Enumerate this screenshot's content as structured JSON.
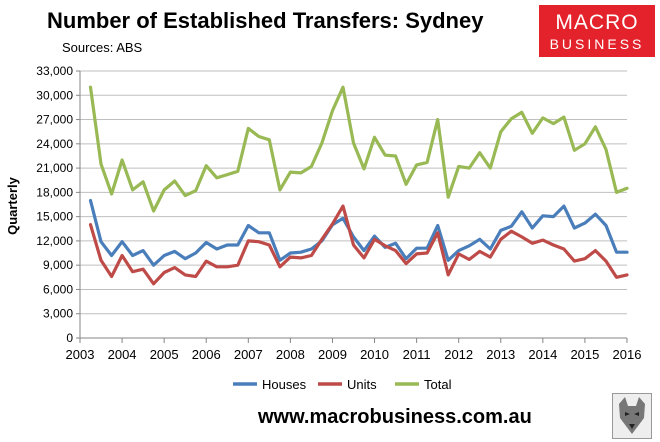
{
  "header": {
    "title": "Number of Established Transfers: Sydney",
    "subtitle": "Sources: ABS"
  },
  "logo": {
    "line1": "MACRO",
    "line2": "BUSINESS",
    "color": "#e4222b"
  },
  "footer": {
    "url": "www.macrobusiness.com.au"
  },
  "chart_data": {
    "type": "line",
    "title": "Number of Established Transfers: Sydney",
    "ylabel": "Quarterly",
    "xlabel": "",
    "ylim": [
      0,
      33000
    ],
    "xlim": [
      2003,
      2016
    ],
    "yticks": [
      0,
      3000,
      6000,
      9000,
      12000,
      15000,
      18000,
      21000,
      24000,
      27000,
      30000,
      33000
    ],
    "ytick_labels": [
      "0",
      "3,000",
      "6,000",
      "9,000",
      "12,000",
      "15,000",
      "18,000",
      "21,000",
      "24,000",
      "27,000",
      "30,000",
      "33,000"
    ],
    "xtick_labels": [
      "2003",
      "2004",
      "2005",
      "2006",
      "2007",
      "2008",
      "2009",
      "2010",
      "2011",
      "2012",
      "2013",
      "2014",
      "2015",
      "2016"
    ],
    "grid": "horizontal",
    "legend_position": "bottom",
    "x_start": 2003.25,
    "x_step": 0.25,
    "series": [
      {
        "name": "Houses",
        "color": "#4a7ebb",
        "values": [
          17000,
          11900,
          10200,
          11900,
          10200,
          10800,
          9000,
          10200,
          10700,
          9800,
          10500,
          11800,
          11000,
          11500,
          11500,
          13900,
          13000,
          13000,
          9600,
          10500,
          10600,
          11000,
          12000,
          14000,
          14800,
          12500,
          10800,
          12600,
          11200,
          11700,
          9800,
          11100,
          11100,
          13900,
          9600,
          10800,
          11400,
          12200,
          11000,
          13300,
          13800,
          15600,
          13600,
          15100,
          15000,
          16300,
          13600,
          14200,
          15300,
          13900,
          10600,
          10600
        ]
      },
      {
        "name": "Units",
        "color": "#be4b48",
        "values": [
          14000,
          9600,
          7600,
          10200,
          8200,
          8500,
          6700,
          8100,
          8700,
          7800,
          7600,
          9500,
          8800,
          8800,
          9000,
          12000,
          11900,
          11500,
          8800,
          10000,
          9900,
          10200,
          12200,
          14100,
          16300,
          11500,
          9900,
          12200,
          11400,
          10800,
          9200,
          10400,
          10500,
          13000,
          7800,
          10400,
          9700,
          10700,
          10000,
          12200,
          13200,
          12500,
          11700,
          12100,
          11500,
          11000,
          9500,
          9800,
          10800,
          9500,
          7500,
          7800
        ]
      },
      {
        "name": "Total",
        "color": "#98b954",
        "values": [
          31000,
          21500,
          17800,
          22000,
          18300,
          19300,
          15700,
          18300,
          19400,
          17600,
          18200,
          21300,
          19800,
          20200,
          20600,
          25900,
          24900,
          24500,
          18300,
          20500,
          20400,
          21200,
          24100,
          28100,
          31000,
          24100,
          20900,
          24800,
          22600,
          22500,
          19000,
          21400,
          21700,
          27000,
          17400,
          21200,
          21000,
          22900,
          21000,
          25500,
          27100,
          27900,
          25300,
          27200,
          26500,
          27300,
          23200,
          24000,
          26100,
          23300,
          18000,
          18500
        ]
      }
    ]
  }
}
